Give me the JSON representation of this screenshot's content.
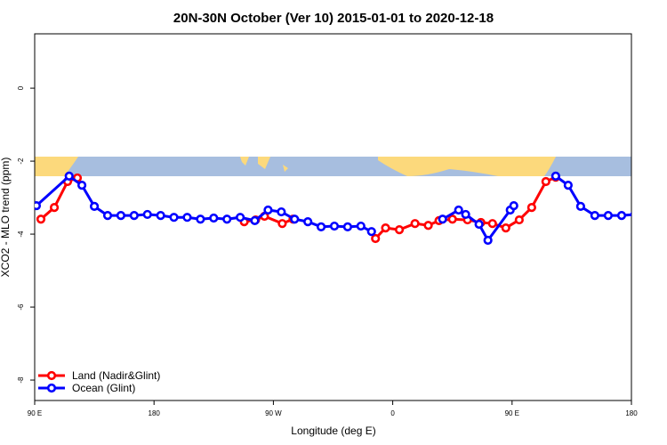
{
  "chart_data": {
    "type": "line",
    "title": "20N-30N October (Ver 10)   2015-01-01 to 2020-12-18",
    "x_label": "Longitude (deg E)",
    "y_label": "XCO2 - MLO trend (ppm)",
    "xlim": [
      90,
      540
    ],
    "xticks": [
      {
        "value": 90,
        "label": "90 E"
      },
      180,
      {
        "value": 270,
        "label": "90 W"
      },
      {
        "value": 360,
        "label": "0"
      },
      {
        "value": 450,
        "label": "90 E"
      },
      {
        "value": 540,
        "label": "180"
      }
    ],
    "ylim": [
      -8.56,
      1.49
    ],
    "yticks": [
      0,
      -2,
      -4,
      -6,
      -8
    ],
    "legend_position": "bottom-left",
    "series": [
      {
        "name": "Land (Nadir&Glint)",
        "color": "#ff0000",
        "x": [
          94.7,
          104.8,
          114.8,
          122.2,
          185,
          248,
          256.6,
          263.3,
          276.7,
          284.8,
          316,
          347,
          354.6,
          365,
          376.8,
          386.8,
          394.9,
          405,
          416.4,
          426.5,
          435.2,
          445.3,
          455.4,
          464.8,
          475.5,
          482.9
        ],
        "values": [
          -3.59,
          -3.27,
          -2.56,
          -2.46,
          null,
          -3.66,
          -3.61,
          -3.51,
          -3.71,
          -3.59,
          null,
          -4.12,
          -3.83,
          -3.88,
          -3.71,
          -3.76,
          -3.63,
          -3.59,
          -3.61,
          -3.68,
          -3.71,
          -3.83,
          -3.61,
          -3.27,
          -2.56,
          -2.44
        ]
      },
      {
        "name": "Ocean (Glint)",
        "color": "#0000ff",
        "x": [
          91.3,
          116,
          125.6,
          135,
          145,
          155,
          165,
          175,
          185,
          195,
          205,
          215,
          225,
          235,
          245,
          256,
          266,
          276,
          286,
          296,
          306,
          316,
          326,
          336,
          344,
          370,
          397.6,
          409.7,
          415,
          425.1,
          431.8,
          448.6,
          451.3,
          466,
          482.9,
          492.3,
          501.7,
          512.4,
          522.5,
          532.6,
          542.6
        ],
        "values": [
          -3.22,
          -2.41,
          -2.66,
          -3.24,
          -3.49,
          -3.49,
          -3.49,
          -3.46,
          -3.49,
          -3.54,
          -3.54,
          -3.59,
          -3.56,
          -3.59,
          -3.54,
          -3.63,
          -3.34,
          -3.39,
          -3.59,
          -3.66,
          -3.8,
          -3.78,
          -3.8,
          -3.78,
          -3.93,
          null,
          -3.59,
          -3.34,
          -3.46,
          -3.73,
          -4.17,
          -3.34,
          -3.22,
          null,
          -2.41,
          -2.66,
          -3.24,
          -3.49,
          -3.49,
          -3.49,
          -3.46
        ]
      }
    ]
  }
}
